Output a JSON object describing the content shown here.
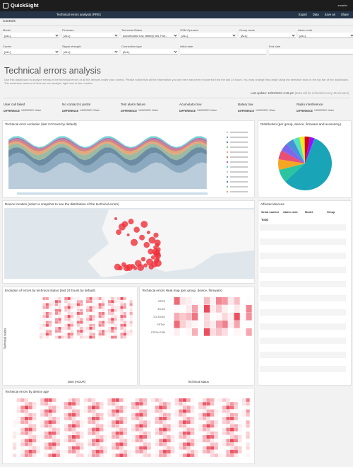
{
  "app": {
    "name": "QuickSight",
    "user": "smarfer"
  },
  "toolbar": {
    "tab": "Technical errors analysis (PRE)",
    "actions": [
      "Export",
      "Data",
      "Save as",
      "Share"
    ]
  },
  "controls": {
    "title": "Controls",
    "filters": [
      {
        "label": "Model",
        "value": "[ALL]"
      },
      {
        "label": "Firmware",
        "value": "[ALL]"
      },
      {
        "label": "Technical Status",
        "value": "Accumulator low, Battery low, Fail..."
      },
      {
        "label": "GSM Operator",
        "value": "[ALL]"
      },
      {
        "label": "Group name",
        "value": "[ALL]"
      },
      {
        "label": "Alarm code",
        "value": "[ALL]"
      },
      {
        "label": "Carrier",
        "value": "[ALL]"
      },
      {
        "label": "Signal strength",
        "value": "[ALL]"
      },
      {
        "label": "Connection type",
        "value": "[ALL]"
      },
      {
        "label": "Initial date"
      },
      {
        "label": "End date"
      }
    ]
  },
  "header": {
    "title": "Technical errors analysis",
    "description": "Use this dashboard to analyze trends in the technical errors of all the devices under your control. Please notice that all the information you see here has been recovered from the last 24 hours. You may change this range using the selection tools in the top bar of the dashboard. The maximum amount of time we can analyze right now is two months.",
    "last_update": "Last update: 16/02/2021 2:46 pm",
    "refresh_note": "(Data will be refreshed every 45 minutes)"
  },
  "kpis": [
    {
      "label": "User call failed",
      "date": "14/02/2021 12am",
      "difference": "DIFFERENCE"
    },
    {
      "label": "No contact to portal",
      "date": "14/02/2021 12am",
      "difference": "DIFFERENCE"
    },
    {
      "label": "Test alarm failure",
      "date": "14/02/2021 12am",
      "difference": "DIFFERENCE"
    },
    {
      "label": "Acumulator low",
      "date": "14/02/2021 12am",
      "difference": "DIFFERENCE"
    },
    {
      "label": "Batery low",
      "date": "14/02/2021 12am",
      "difference": "DIFFERENCE"
    },
    {
      "label": "Radio interference",
      "date": "14/02/2021 12am",
      "difference": "DIFFERENCE"
    }
  ],
  "panels": {
    "evolution": "Technical error evolution (last 24 hours by default)",
    "distribution": "Distribution (per group, device, firmware and accessory)",
    "location": "Device location (select a snapshot to see the distribution of the technical errors)",
    "status_evolution": "Evolution of errors by technical status (last 24 hours by default)",
    "heatmap": "Technical errors Heat map (per group, device, firmware)",
    "age": "Technical errors by device age"
  },
  "status_evolution": {
    "y_label": "Technical status",
    "x_label": "Date (HOUR)"
  },
  "heatmap": {
    "rows": [
      "GPRS",
      "3G-4G",
      "2G-3G/4G",
      "PSTN+",
      "PSTN+GSM"
    ],
    "x_label": "Technical status"
  },
  "affected_devices": {
    "title": "Affected devices",
    "columns": [
      "Serial number",
      "Alarm code",
      "Model",
      "Group"
    ],
    "total": "Total"
  }
}
